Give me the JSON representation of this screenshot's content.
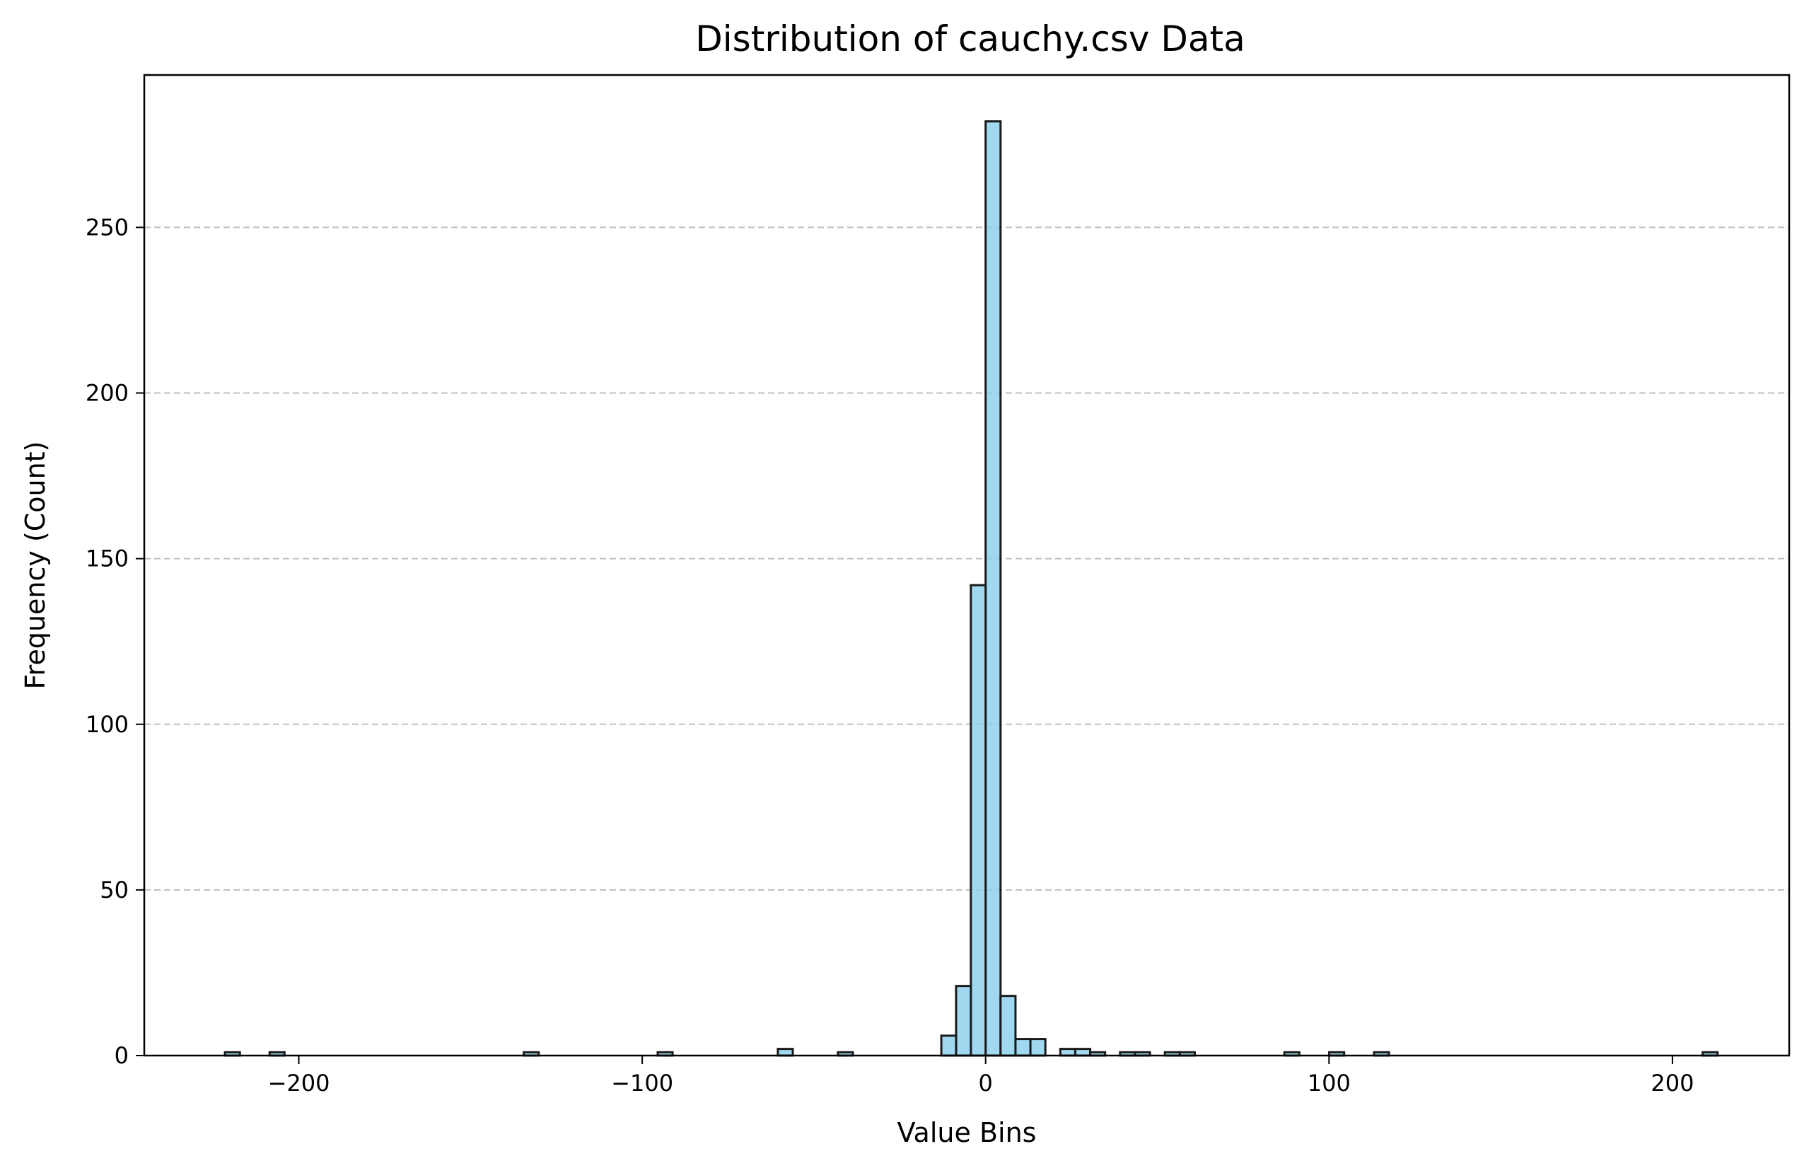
{
  "chart_data": {
    "type": "bar",
    "title": "Distribution of cauchy.csv Data",
    "xlabel": "Value Bins",
    "ylabel": "Frequency (Count)",
    "xlim": [
      -245,
      234
    ],
    "ylim": [
      0,
      296
    ],
    "xticks": [
      -200,
      -100,
      0,
      100,
      200
    ],
    "xtick_labels": [
      "−200",
      "−100",
      "0",
      "100",
      "200"
    ],
    "yticks": [
      0,
      50,
      100,
      150,
      200,
      250
    ],
    "ytick_labels": [
      "0",
      "50",
      "100",
      "150",
      "200",
      "250"
    ],
    "grid": "y-dashed",
    "legend": "none",
    "bar_color": "#87ceeb",
    "edge_color": "#1a1a1a",
    "grid_color": "#c0c0c0",
    "bin_width": 4.35,
    "bins": [
      {
        "left": -221.5,
        "count": 1
      },
      {
        "left": -208.5,
        "count": 1
      },
      {
        "left": -134.5,
        "count": 1
      },
      {
        "left": -95.5,
        "count": 1
      },
      {
        "left": -60.5,
        "count": 2
      },
      {
        "left": -43.0,
        "count": 1
      },
      {
        "left": -12.9,
        "count": 6
      },
      {
        "left": -8.6,
        "count": 21
      },
      {
        "left": -4.3,
        "count": 142
      },
      {
        "left": 0.0,
        "count": 282
      },
      {
        "left": 4.35,
        "count": 18
      },
      {
        "left": 8.7,
        "count": 5
      },
      {
        "left": 13.05,
        "count": 5
      },
      {
        "left": 21.75,
        "count": 2
      },
      {
        "left": 26.1,
        "count": 2
      },
      {
        "left": 30.45,
        "count": 1
      },
      {
        "left": 39.15,
        "count": 1
      },
      {
        "left": 43.5,
        "count": 1
      },
      {
        "left": 52.2,
        "count": 1
      },
      {
        "left": 56.55,
        "count": 1
      },
      {
        "left": 87.0,
        "count": 1
      },
      {
        "left": 100.05,
        "count": 1
      },
      {
        "left": 113.1,
        "count": 1
      },
      {
        "left": 208.8,
        "count": 1
      }
    ]
  }
}
